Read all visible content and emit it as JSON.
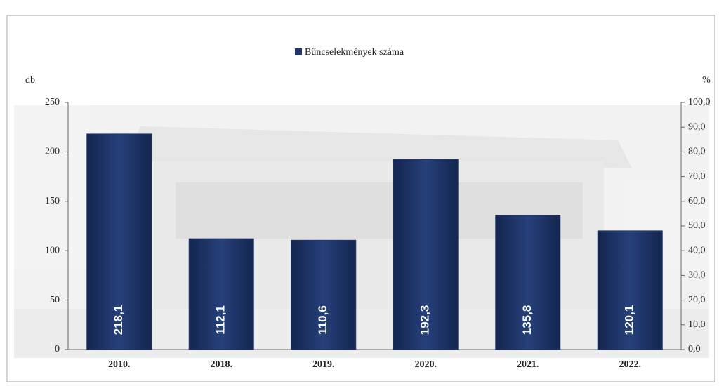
{
  "chart_data": {
    "type": "bar",
    "legend": "Bűncselekmények száma",
    "legend_position": "top",
    "y_label": "db",
    "y2_label": "%",
    "categories": [
      "2010.",
      "2018.",
      "2019.",
      "2020.",
      "2021.",
      "2022."
    ],
    "series": [
      {
        "name": "Bűncselekmények száma",
        "color": "#1f3566",
        "values": [
          218.1,
          112.1,
          110.6,
          192.3,
          135.8,
          120.1
        ],
        "value_labels": [
          "218,1",
          "112,1",
          "110,6",
          "192,3",
          "135,8",
          "120,1"
        ]
      }
    ],
    "ylim": [
      0,
      250
    ],
    "yticks": [
      0,
      50,
      100,
      150,
      200,
      250
    ],
    "y2lim": [
      0,
      100
    ],
    "y2ticks": [
      {
        "value": 0,
        "label": "0,0"
      },
      {
        "value": 10,
        "label": "10,0"
      },
      {
        "value": 20,
        "label": "20,0"
      },
      {
        "value": 30,
        "label": "30,0"
      },
      {
        "value": 40,
        "label": "40,0"
      },
      {
        "value": 50,
        "label": "50,0"
      },
      {
        "value": 60,
        "label": "60,0"
      },
      {
        "value": 70,
        "label": "70,0"
      },
      {
        "value": 80,
        "label": "80,0"
      },
      {
        "value": 90,
        "label": "90,0"
      },
      {
        "value": 100,
        "label": "100,0"
      }
    ],
    "grid": false
  }
}
